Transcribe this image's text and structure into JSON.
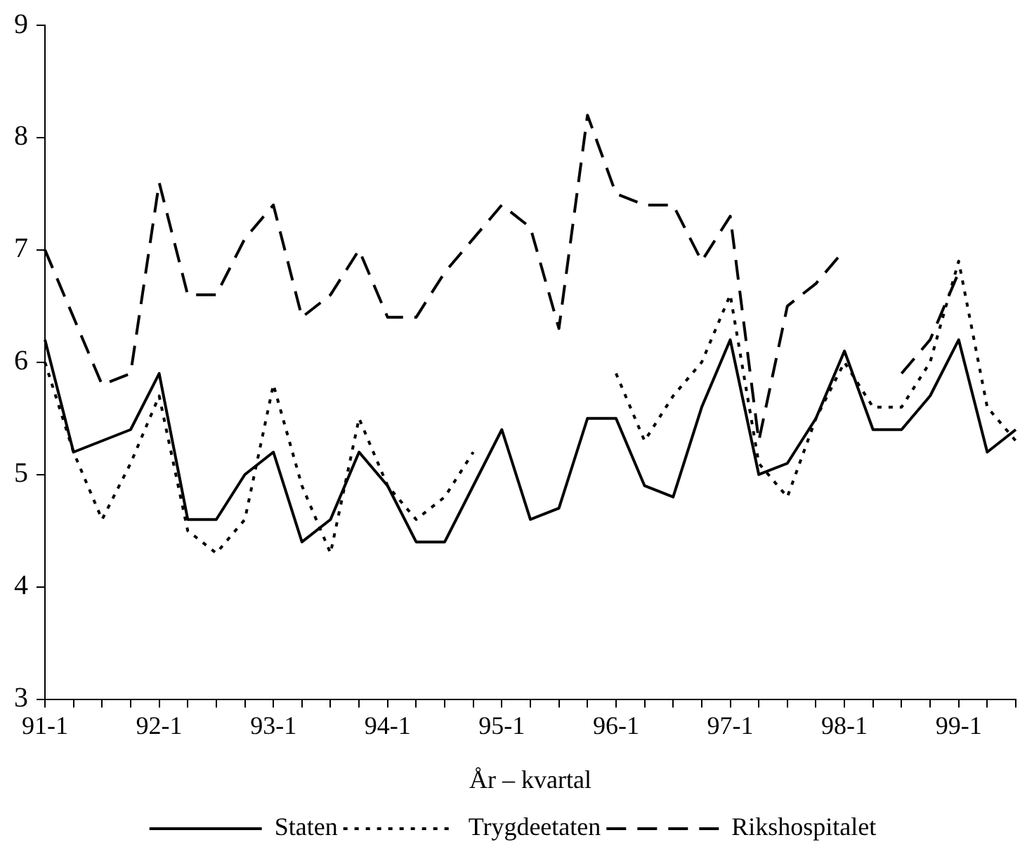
{
  "chart_data": {
    "type": "line",
    "xlabel": "År – kvartal",
    "categories": [
      "91-1",
      null,
      null,
      null,
      "92-1",
      null,
      null,
      null,
      "93-1",
      null,
      null,
      null,
      "94-1",
      null,
      null,
      null,
      "95-1",
      null,
      null,
      null,
      "96-1",
      null,
      null,
      null,
      "97-1",
      null,
      null,
      null,
      "98-1",
      null,
      null,
      null,
      "99-1",
      null,
      null
    ],
    "series": [
      {
        "name": "Staten",
        "color": "#000000",
        "line_style": "solid",
        "values": [
          6.2,
          5.2,
          5.3,
          5.4,
          5.9,
          4.6,
          4.6,
          5.0,
          5.2,
          4.4,
          4.6,
          5.2,
          4.9,
          4.4,
          4.4,
          4.9,
          5.4,
          4.6,
          4.7,
          5.5,
          5.5,
          4.9,
          4.8,
          5.6,
          6.2,
          5.0,
          5.1,
          5.5,
          6.1,
          5.4,
          5.4,
          5.7,
          6.2,
          5.2,
          5.4
        ]
      },
      {
        "name": "Trygdeetaten",
        "color": "#000000",
        "line_style": "dotted",
        "values": [
          6.0,
          5.2,
          4.6,
          5.1,
          5.7,
          4.5,
          4.3,
          4.6,
          5.8,
          4.9,
          4.3,
          5.5,
          4.9,
          4.6,
          4.8,
          5.2,
          null,
          null,
          null,
          null,
          5.9,
          5.3,
          5.7,
          6.0,
          6.6,
          5.1,
          4.8,
          5.5,
          6.0,
          5.6,
          5.6,
          6.0,
          6.9,
          5.6,
          5.3
        ]
      },
      {
        "name": "Rikshospitalet",
        "color": "#000000",
        "line_style": "dashed",
        "values": [
          7.0,
          6.4,
          5.8,
          5.9,
          7.6,
          6.6,
          6.6,
          7.1,
          7.4,
          6.4,
          6.6,
          7.0,
          6.4,
          6.4,
          6.8,
          7.1,
          7.4,
          7.2,
          6.3,
          8.2,
          7.5,
          7.4,
          7.4,
          6.9,
          7.3,
          5.3,
          6.5,
          6.7,
          7.0,
          null,
          5.9,
          6.2,
          6.8,
          null,
          null
        ]
      }
    ],
    "ylim": [
      3,
      9
    ],
    "yticks": [
      3,
      4,
      5,
      6,
      7,
      8,
      9
    ],
    "grid": false,
    "legend": "bottom",
    "marker": "none"
  }
}
